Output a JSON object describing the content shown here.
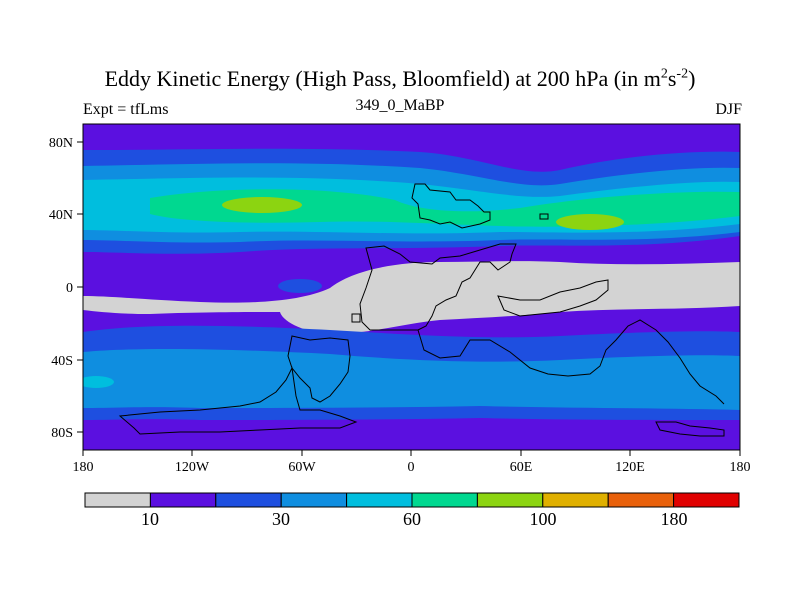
{
  "title": {
    "main_text": "Eddy Kinetic Energy (High Pass, Bloomfield) at 200 hPa (in m",
    "sup1": "2",
    "mid": "s",
    "sup2": "-2",
    "end": ")"
  },
  "left_subtitle": "Expt = tfLms",
  "center_subtitle": "349_0_MaBP",
  "right_subtitle": "DJF",
  "x_axis_ticks": [
    "180",
    "120W",
    "60W",
    "0",
    "60E",
    "120E",
    "180"
  ],
  "y_axis_ticks": [
    "80N",
    "40N",
    "0",
    "40S",
    "80S"
  ],
  "colorbar": {
    "colors": [
      "#d3d3d3",
      "#5b10e0",
      "#1e4fe0",
      "#0f8ee0",
      "#00bede",
      "#00d890",
      "#8cd411",
      "#e0b000",
      "#e8600a",
      "#e00000"
    ],
    "labels": [
      "10",
      "30",
      "60",
      "100",
      "180"
    ]
  },
  "palette": {
    "gray": "#d3d3d3",
    "violet": "#5b10e0",
    "blue": "#1e4fe0",
    "mid_blue": "#0f8ee0",
    "cyan": "#00bede",
    "green": "#00d890",
    "lime": "#8cd411",
    "amber": "#e0b000"
  }
}
